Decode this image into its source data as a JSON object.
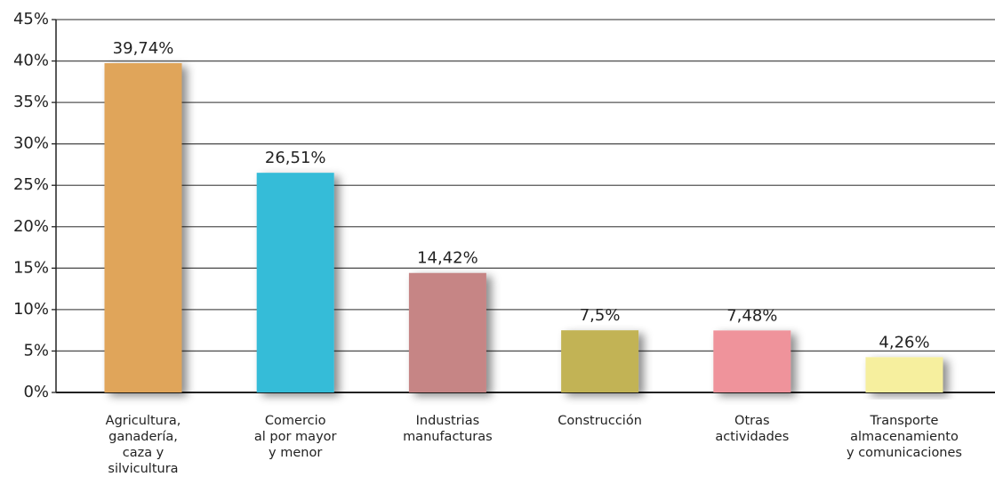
{
  "chart_data": {
    "type": "bar",
    "categories": [
      "Agricultura,\nganadería,\ncaza y\nsilvicultura",
      "Comercio\nal por mayor\ny menor",
      "Industrias\nmanufacturas",
      "Construcción",
      "Otras\nactividades",
      "Transporte\nalmacenamiento\ny comunicaciones"
    ],
    "values": [
      39.74,
      26.51,
      14.42,
      7.5,
      7.48,
      4.26
    ],
    "value_labels": [
      "39,74%",
      "26,51%",
      "14,42%",
      "7,5%",
      "7,48%",
      "4,26%"
    ],
    "colors": [
      "#e0a55a",
      "#36bcd8",
      "#c68585",
      "#c2b354",
      "#ef939b",
      "#f6ef9e"
    ],
    "ylim": [
      0,
      45
    ],
    "yticks": [
      {
        "value": 0,
        "label": "0%"
      },
      {
        "value": 5,
        "label": "5%"
      },
      {
        "value": 10,
        "label": "10%"
      },
      {
        "value": 15,
        "label": "15%"
      },
      {
        "value": 20,
        "label": "20%"
      },
      {
        "value": 25,
        "label": "25%"
      },
      {
        "value": 30,
        "label": "30%"
      },
      {
        "value": 35,
        "label": "35%"
      },
      {
        "value": 40,
        "label": "40%"
      },
      {
        "value": 45,
        "label": "45%"
      }
    ],
    "grid": true
  }
}
